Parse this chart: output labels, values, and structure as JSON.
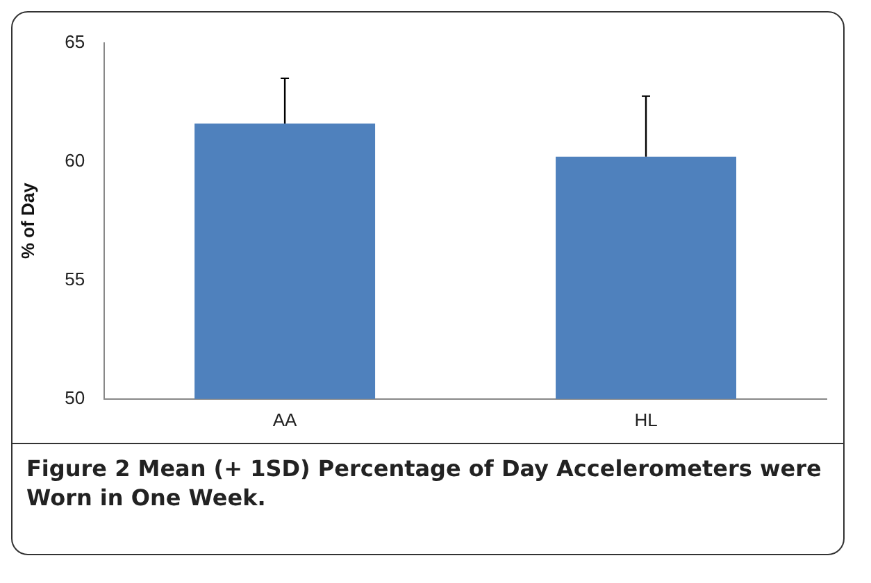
{
  "chart_data": {
    "type": "bar",
    "ylabel": "% of Day",
    "categories": [
      "AA",
      "HL"
    ],
    "values": [
      61.6,
      60.2
    ],
    "errors": [
      [
        61.6,
        63.5
      ],
      [
        60.2,
        62.75
      ]
    ],
    "color": "#4f81bd",
    "ylim": [
      50,
      65
    ],
    "yticks": [
      50,
      55,
      60,
      65
    ],
    "grid": false,
    "legend": false,
    "annotations": [
      "Figure 2 Mean (+ 1SD) Percentage of Day Accelerometers were Worn in One Week."
    ]
  }
}
